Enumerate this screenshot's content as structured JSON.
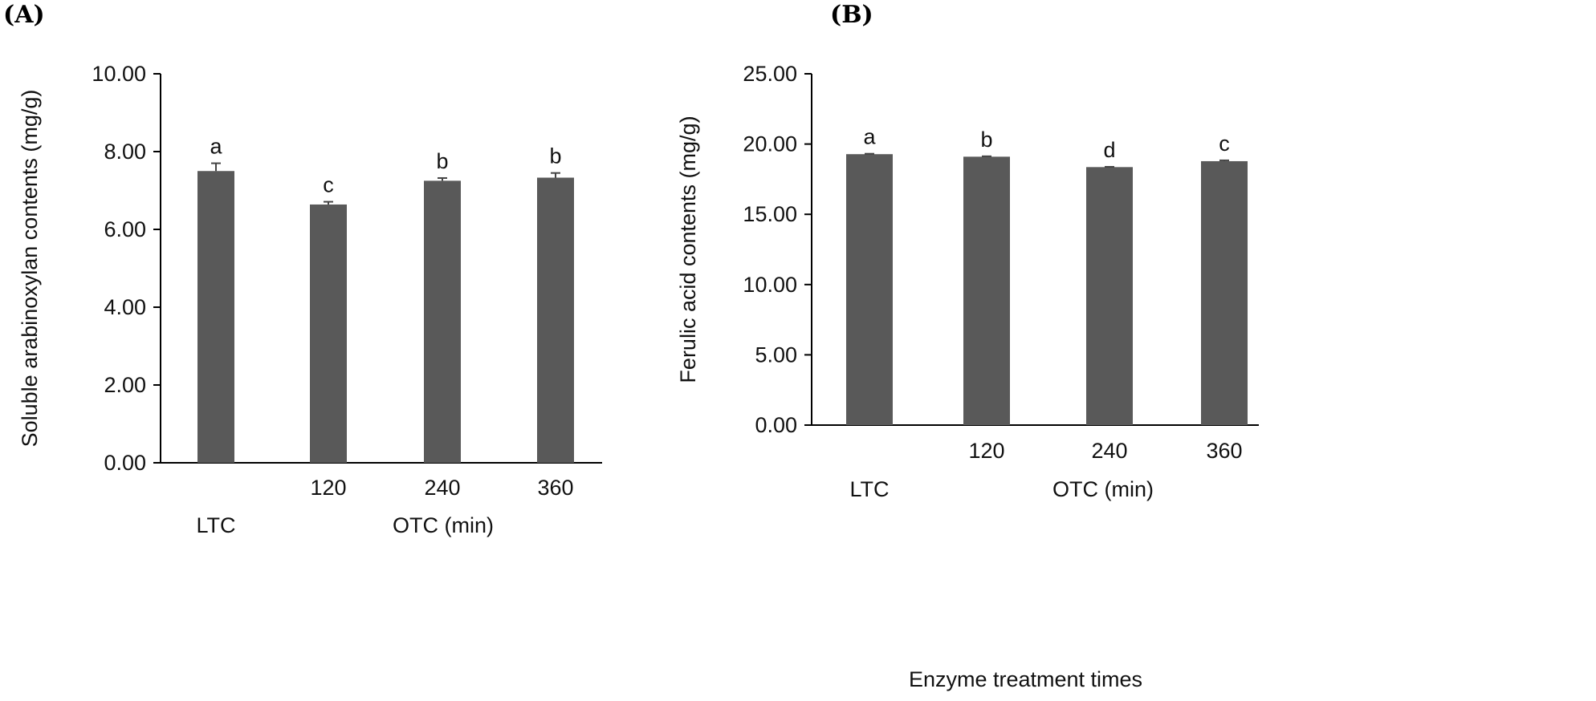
{
  "chart_data": [
    {
      "type": "bar",
      "panel_label": "(A)",
      "categories": [
        "LTC",
        "120",
        "240",
        "360"
      ],
      "category_tick_labels": [
        "",
        "120",
        "240",
        "360"
      ],
      "group_labels": [
        "LTC",
        "OTC (min)"
      ],
      "values": [
        7.5,
        6.64,
        7.25,
        7.33
      ],
      "errors": [
        0.2,
        0.07,
        0.07,
        0.12
      ],
      "significance": [
        "a",
        "c",
        "b",
        "b"
      ],
      "ylabel": "Soluble arabinoxylan contents (mg/g)",
      "xlabel": "",
      "ylim": [
        0,
        10
      ],
      "yticks": [
        "0.00",
        "2.00",
        "4.00",
        "6.00",
        "8.00",
        "10.00"
      ],
      "bar_color": "#595959",
      "grid": false
    },
    {
      "type": "bar",
      "panel_label": "(B)",
      "categories": [
        "LTC",
        "120",
        "240",
        "360"
      ],
      "category_tick_labels": [
        "",
        "120",
        "240",
        "360"
      ],
      "group_labels": [
        "LTC",
        "OTC (min)"
      ],
      "values": [
        19.28,
        19.1,
        18.36,
        18.78
      ],
      "errors": [
        0.03,
        0.03,
        0.02,
        0.06
      ],
      "significance": [
        "a",
        "b",
        "d",
        "c"
      ],
      "ylabel": "Ferulic acid contents (mg/g)",
      "xlabel": "Enzyme treatment times",
      "ylim": [
        0,
        25
      ],
      "yticks": [
        "0.00",
        "5.00",
        "10.00",
        "15.00",
        "20.00",
        "25.00"
      ],
      "bar_color": "#595959",
      "grid": false
    }
  ]
}
